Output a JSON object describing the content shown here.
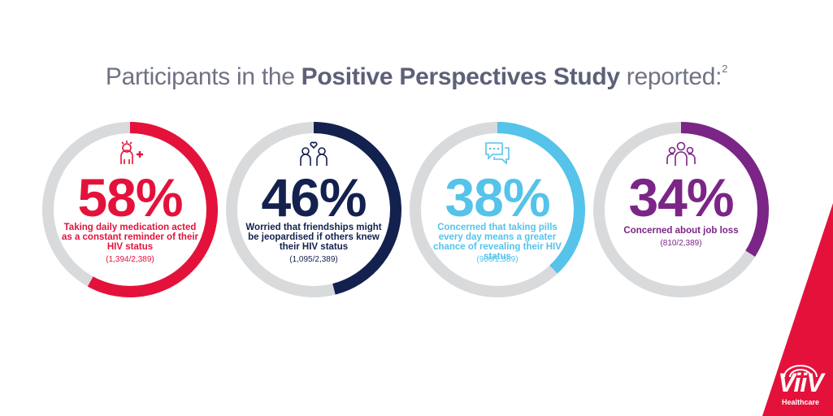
{
  "header": {
    "prefix": "Participants in the ",
    "bold": "Positive Perspectives Study",
    "suffix": " reported:",
    "sup": "2"
  },
  "chart_data": {
    "type": "donut",
    "items": [
      {
        "value": 58,
        "label": "58%",
        "description": "Taking daily medication acted as a constant reminder of their HIV status",
        "fraction": "(1,394/2,389)",
        "color": "#e4123b",
        "icon": "medication-reminder-person-icon"
      },
      {
        "value": 46,
        "label": "46%",
        "description": "Worried that friendships might be jeopardised if others knew their HIV status",
        "fraction": "(1,095/2,389)",
        "color": "#13214f",
        "icon": "friendship-heart-icon"
      },
      {
        "value": 38,
        "label": "38%",
        "description": "Concerned that taking pills every day means a greater chance of revealing their HIV status",
        "fraction": "(906/2,389)",
        "color": "#55c3ea",
        "icon": "speech-bubbles-icon"
      },
      {
        "value": 34,
        "label": "34%",
        "description": "Concerned about job loss",
        "fraction": "(810/2,389)",
        "color": "#7b2586",
        "icon": "group-people-icon"
      }
    ],
    "track_color": "#d9dadc"
  },
  "brand": {
    "name": "ViiV",
    "tagline": "Healthcare",
    "color": "#e4123b"
  }
}
